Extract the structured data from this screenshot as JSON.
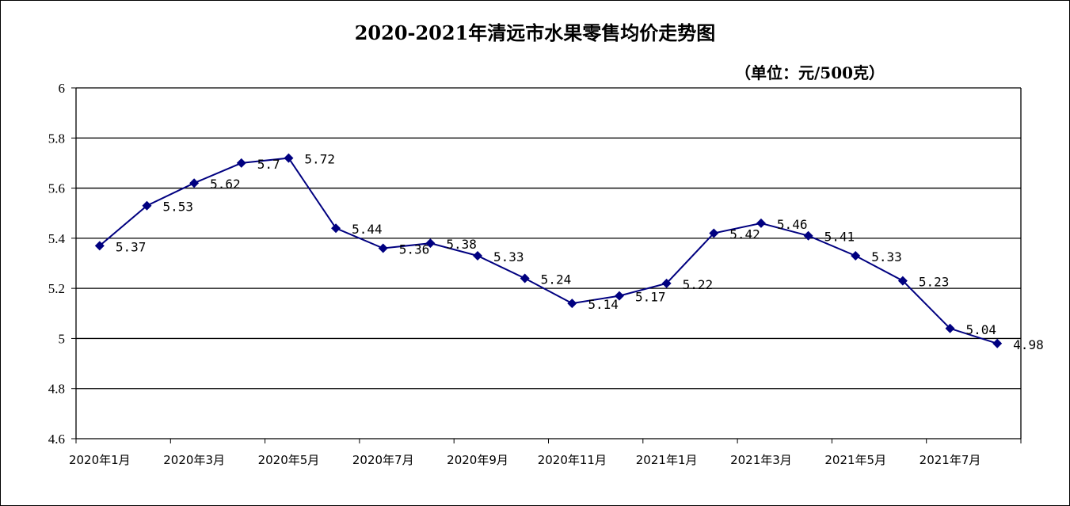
{
  "chart_data": {
    "type": "line",
    "title": "2020-2021年清远市水果零售均价走势图",
    "unit_label": "（单位：元/500克）",
    "xlabel": "",
    "ylabel": "",
    "ylim": [
      4.6,
      6
    ],
    "yticks": [
      "4.6",
      "4.8",
      "5",
      "5.2",
      "5.4",
      "5.6",
      "5.8",
      "6"
    ],
    "x_tick_labels": [
      "2020年1月",
      "2020年3月",
      "2020年5月",
      "2020年7月",
      "2020年9月",
      "2020年11月",
      "2021年1月",
      "2021年3月",
      "2021年5月",
      "2021年7月"
    ],
    "grid": true,
    "legend": "none",
    "series": [
      {
        "color": "#000080",
        "marker": "diamond",
        "values": [
          5.37,
          5.53,
          5.62,
          5.7,
          5.72,
          5.44,
          5.36,
          5.38,
          5.33,
          5.24,
          5.14,
          5.17,
          5.22,
          5.42,
          5.46,
          5.41,
          5.33,
          5.23,
          5.04,
          4.98
        ],
        "labels": [
          "5.37",
          "5.53",
          "5.62",
          "5.7",
          "5.72",
          "5.44",
          "5.36",
          "5.38",
          "5.33",
          "5.24",
          "5.14",
          "5.17",
          "5.22",
          "5.42",
          "5.46",
          "5.41",
          "5.33",
          "5.23",
          "5.04",
          "4.98"
        ]
      }
    ]
  }
}
